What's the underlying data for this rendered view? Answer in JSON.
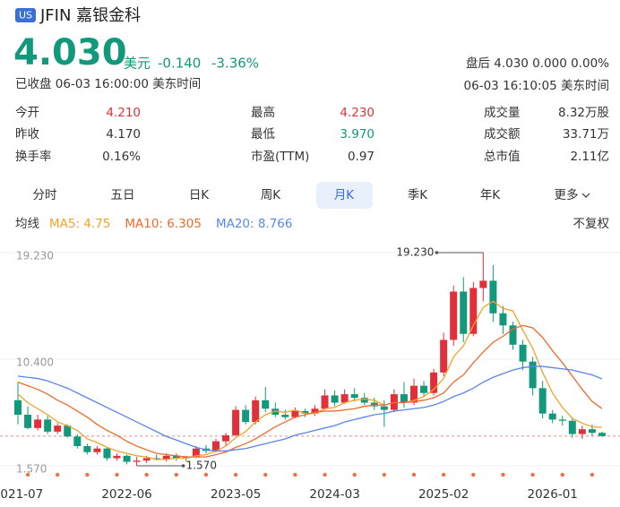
{
  "header": {
    "market": "US",
    "name": "JFIN 嘉银金科",
    "price": "4.030",
    "currency": "美元",
    "change": "-0.140",
    "change_pct": "-3.36%",
    "status": "已收盘 06-03 16:00:00 美东时间",
    "after_hours": "盘后 4.030 0.000 0.00%",
    "after_time": "06-03 16:10:05 美东时间"
  },
  "quote": {
    "rows": [
      [
        {
          "label": "今开",
          "value": "4.210"
        },
        {
          "label": "最高",
          "value": "4.230"
        },
        {
          "label": "成交量",
          "value": "8.32万股"
        }
      ],
      [
        {
          "label": "昨收",
          "value": "4.170"
        },
        {
          "label": "最低",
          "value": "3.970"
        },
        {
          "label": "成交额",
          "value": "33.71万"
        }
      ],
      [
        {
          "label": "换手率",
          "value": "0.16%"
        },
        {
          "label": "市盈(TTM)",
          "value": "0.97"
        },
        {
          "label": "总市值",
          "value": "2.11亿"
        }
      ]
    ]
  },
  "tabs": {
    "items": [
      "分时",
      "五日",
      "日K",
      "周K",
      "月K",
      "季K",
      "年K",
      "更多"
    ],
    "active": "月K"
  },
  "chart_data": {
    "type": "candlestick",
    "ma_title": "均线",
    "adjust": "不复权",
    "categories": [
      "2021-07",
      null,
      null,
      null,
      null,
      null,
      null,
      null,
      null,
      null,
      null,
      "2022-06",
      null,
      null,
      null,
      null,
      null,
      null,
      null,
      null,
      null,
      null,
      "2023-05",
      null,
      null,
      null,
      null,
      null,
      null,
      null,
      null,
      null,
      "2024-03",
      null,
      null,
      null,
      null,
      null,
      null,
      null,
      null,
      null,
      null,
      "2025-02",
      null,
      null,
      null,
      null,
      null,
      null,
      null,
      null,
      null,
      null,
      "2026-01",
      null,
      null,
      null,
      null,
      null
    ],
    "open": [
      7.0,
      5.8,
      4.7,
      5.4,
      4.4,
      4.9,
      4.0,
      3.2,
      2.7,
      3.0,
      2.2,
      2.4,
      1.9,
      2.0,
      2.2,
      2.1,
      2.4,
      2.2,
      2.3,
      3.0,
      2.8,
      3.6,
      4.1,
      6.2,
      5.2,
      7.0,
      6.3,
      5.8,
      5.6,
      6.1,
      5.9,
      6.3,
      7.4,
      6.8,
      7.5,
      7.2,
      6.8,
      6.5,
      6.2,
      7.5,
      6.8,
      8.2,
      7.6,
      9.3,
      12.0,
      16.0,
      12.5,
      16.3,
      16.9,
      14.2,
      13.2,
      11.6,
      10.2,
      8.0,
      5.9,
      5.4,
      5.3,
      4.2,
      4.6,
      4.3
    ],
    "high": [
      8.5,
      6.5,
      5.8,
      5.7,
      5.1,
      5.0,
      4.2,
      3.4,
      3.2,
      3.1,
      2.6,
      2.5,
      2.3,
      2.4,
      2.5,
      2.6,
      2.6,
      2.4,
      3.2,
      3.3,
      3.8,
      4.3,
      6.5,
      6.6,
      7.3,
      8.1,
      6.8,
      6.2,
      6.4,
      6.3,
      6.6,
      7.9,
      7.8,
      7.9,
      8.0,
      7.6,
      7.2,
      7.0,
      7.9,
      8.5,
      8.8,
      8.6,
      9.6,
      12.6,
      16.5,
      17.2,
      16.8,
      19.23,
      18.2,
      14.8,
      13.5,
      12.0,
      10.6,
      8.6,
      6.2,
      5.7,
      5.6,
      4.9,
      5.0,
      4.4
    ],
    "low": [
      5.0,
      4.6,
      4.5,
      4.2,
      4.2,
      3.9,
      3.0,
      2.5,
      2.5,
      2.0,
      2.0,
      1.7,
      1.57,
      1.8,
      2.0,
      1.9,
      2.0,
      1.9,
      2.2,
      2.6,
      2.7,
      3.2,
      4.0,
      5.0,
      5.0,
      6.0,
      5.6,
      5.4,
      5.5,
      5.6,
      5.7,
      6.2,
      6.5,
      6.7,
      6.9,
      6.6,
      6.2,
      4.8,
      6.0,
      6.4,
      6.6,
      7.3,
      7.4,
      9.0,
      11.5,
      11.8,
      12.3,
      15.2,
      13.5,
      12.5,
      11.2,
      9.5,
      7.4,
      5.5,
      5.1,
      4.9,
      3.9,
      3.8,
      4.0,
      3.97
    ],
    "close": [
      5.8,
      4.7,
      5.4,
      4.4,
      4.9,
      4.0,
      3.2,
      2.7,
      3.0,
      2.2,
      2.4,
      1.9,
      2.0,
      2.2,
      2.1,
      2.4,
      2.2,
      2.3,
      3.0,
      2.8,
      3.6,
      4.1,
      6.2,
      5.2,
      7.0,
      6.3,
      5.8,
      5.6,
      6.1,
      5.9,
      6.3,
      7.4,
      6.8,
      7.5,
      7.2,
      6.8,
      6.5,
      6.2,
      7.5,
      6.8,
      8.2,
      7.6,
      9.3,
      12.0,
      16.0,
      12.5,
      16.3,
      16.9,
      14.2,
      13.2,
      11.6,
      10.2,
      8.0,
      5.9,
      5.4,
      5.3,
      4.2,
      4.6,
      4.3,
      4.03
    ],
    "up_color": "#e0313b",
    "down_color": "#12987a",
    "series": [
      {
        "name": "MA5: 4.75",
        "color": "#f0a22a",
        "values": [
          7.5,
          6.8,
          6.3,
          5.8,
          5.2,
          4.9,
          4.5,
          3.8,
          3.5,
          3.1,
          2.8,
          2.6,
          2.4,
          2.3,
          2.1,
          2.1,
          2.2,
          2.2,
          2.4,
          2.5,
          2.8,
          3.2,
          3.9,
          4.4,
          5.2,
          5.8,
          6.1,
          6.0,
          6.2,
          5.9,
          5.9,
          6.3,
          6.4,
          6.8,
          7.0,
          7.1,
          7.0,
          6.6,
          6.8,
          6.8,
          7.0,
          7.3,
          7.9,
          8.8,
          10.6,
          11.5,
          13.2,
          14.7,
          15.2,
          14.6,
          14.4,
          12.8,
          11.3,
          9.3,
          7.6,
          6.4,
          5.5,
          5.1,
          4.8,
          4.75
        ]
      },
      {
        "name": "MA10: 6.305",
        "color": "#ef6a2c",
        "values": [
          8.5,
          8.2,
          7.9,
          7.5,
          7.0,
          6.6,
          6.1,
          5.6,
          5.0,
          4.5,
          4.1,
          3.6,
          3.2,
          2.9,
          2.6,
          2.5,
          2.4,
          2.3,
          2.3,
          2.3,
          2.5,
          2.7,
          3.1,
          3.4,
          3.8,
          4.3,
          4.8,
          5.2,
          5.6,
          5.8,
          6.0,
          6.1,
          6.1,
          6.2,
          6.3,
          6.5,
          6.6,
          6.6,
          6.8,
          6.8,
          6.9,
          7.0,
          7.2,
          7.6,
          8.5,
          9.1,
          10.1,
          11.0,
          11.8,
          12.3,
          12.9,
          13.2,
          13.0,
          12.2,
          11.1,
          10.1,
          9.0,
          7.9,
          6.9,
          6.305
        ]
      },
      {
        "name": "MA20: 8.766",
        "color": "#5a86e8",
        "values": [
          9.0,
          8.9,
          8.8,
          8.6,
          8.3,
          8.0,
          7.6,
          7.2,
          6.8,
          6.4,
          6.0,
          5.6,
          5.2,
          4.8,
          4.4,
          4.0,
          3.7,
          3.4,
          3.1,
          2.9,
          2.8,
          2.8,
          2.9,
          3.0,
          3.2,
          3.4,
          3.6,
          3.8,
          4.1,
          4.3,
          4.5,
          4.7,
          4.9,
          5.2,
          5.4,
          5.6,
          5.8,
          5.9,
          6.1,
          6.2,
          6.3,
          6.4,
          6.6,
          6.9,
          7.3,
          7.6,
          8.0,
          8.5,
          8.9,
          9.2,
          9.5,
          9.7,
          9.8,
          9.8,
          9.7,
          9.6,
          9.5,
          9.3,
          9.1,
          8.766
        ]
      }
    ],
    "ylim": [
      1.57,
      19.23
    ],
    "yticks": [
      {
        "value": 19.23,
        "label": "19.230"
      },
      {
        "value": 10.4,
        "label": "10.400"
      },
      {
        "value": 1.57,
        "label": "1.570"
      }
    ],
    "price_line": 4.03,
    "annotations": [
      {
        "value": 19.23,
        "label": "19.230",
        "side": "left"
      },
      {
        "value": 1.57,
        "label": "1.570",
        "side": "right"
      }
    ]
  }
}
